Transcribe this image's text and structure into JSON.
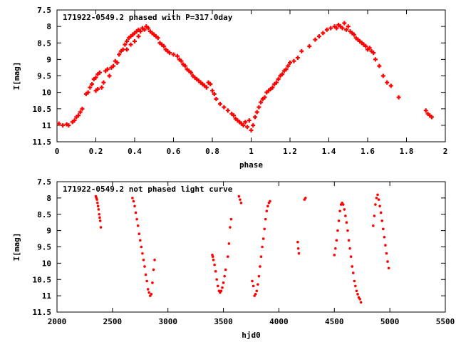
{
  "chart_data": [
    {
      "type": "scatter",
      "title": "171922-0549.2 phased with P=317.0day",
      "xlabel": "phase",
      "ylabel": "I[mag]",
      "xlim": [
        0,
        2
      ],
      "ylim": [
        7.5,
        11.5
      ],
      "y_inverted": true,
      "x_ticks": [
        "0",
        "0.2",
        "0.4",
        "0.6",
        "0.8",
        "1",
        "1.2",
        "1.4",
        "1.6",
        "1.8",
        "2"
      ],
      "y_ticks": [
        "7.5",
        "8",
        "8.5",
        "9",
        "9.5",
        "10",
        "10.5",
        "11",
        "11.5"
      ],
      "grid": false,
      "marker_color": "#ff0000",
      "series": [
        {
          "points": [
            [
              0.01,
              10.95
            ],
            [
              0.03,
              11.0
            ],
            [
              0.05,
              10.97
            ],
            [
              0.06,
              11.0
            ],
            [
              0.08,
              10.9
            ],
            [
              0.09,
              10.85
            ],
            [
              0.1,
              10.75
            ],
            [
              0.11,
              10.7
            ],
            [
              0.12,
              10.6
            ],
            [
              0.13,
              10.5
            ],
            [
              0.15,
              10.05
            ],
            [
              0.16,
              10.0
            ],
            [
              0.17,
              9.85
            ],
            [
              0.18,
              9.75
            ],
            [
              0.19,
              9.6
            ],
            [
              0.2,
              9.55
            ],
            [
              0.21,
              9.45
            ],
            [
              0.22,
              9.4
            ],
            [
              0.2,
              9.95
            ],
            [
              0.21,
              9.9
            ],
            [
              0.23,
              9.85
            ],
            [
              0.24,
              9.7
            ],
            [
              0.25,
              9.35
            ],
            [
              0.26,
              9.3
            ],
            [
              0.27,
              9.5
            ],
            [
              0.28,
              9.25
            ],
            [
              0.29,
              9.2
            ],
            [
              0.3,
              9.05
            ],
            [
              0.31,
              9.1
            ],
            [
              0.32,
              8.85
            ],
            [
              0.33,
              8.75
            ],
            [
              0.34,
              8.7
            ],
            [
              0.35,
              8.55
            ],
            [
              0.36,
              8.45
            ],
            [
              0.37,
              8.35
            ],
            [
              0.38,
              8.3
            ],
            [
              0.39,
              8.25
            ],
            [
              0.4,
              8.2
            ],
            [
              0.41,
              8.15
            ],
            [
              0.42,
              8.1
            ],
            [
              0.43,
              8.15
            ],
            [
              0.44,
              8.05
            ],
            [
              0.45,
              8.1
            ],
            [
              0.46,
              8.0
            ],
            [
              0.47,
              8.05
            ],
            [
              0.48,
              8.15
            ],
            [
              0.49,
              8.2
            ],
            [
              0.5,
              8.25
            ],
            [
              0.51,
              8.3
            ],
            [
              0.52,
              8.35
            ],
            [
              0.36,
              8.7
            ],
            [
              0.38,
              8.55
            ],
            [
              0.4,
              8.45
            ],
            [
              0.42,
              8.3
            ],
            [
              0.53,
              8.5
            ],
            [
              0.54,
              8.55
            ],
            [
              0.55,
              8.6
            ],
            [
              0.56,
              8.7
            ],
            [
              0.57,
              8.75
            ],
            [
              0.58,
              8.8
            ],
            [
              0.6,
              8.85
            ],
            [
              0.62,
              8.9
            ],
            [
              0.63,
              9.0
            ],
            [
              0.64,
              9.05
            ],
            [
              0.65,
              9.15
            ],
            [
              0.66,
              9.2
            ],
            [
              0.67,
              9.3
            ],
            [
              0.68,
              9.35
            ],
            [
              0.69,
              9.4
            ],
            [
              0.7,
              9.5
            ],
            [
              0.71,
              9.55
            ],
            [
              0.72,
              9.6
            ],
            [
              0.73,
              9.65
            ],
            [
              0.74,
              9.7
            ],
            [
              0.75,
              9.75
            ],
            [
              0.76,
              9.8
            ],
            [
              0.77,
              9.85
            ],
            [
              0.78,
              9.7
            ],
            [
              0.79,
              9.75
            ],
            [
              0.8,
              9.95
            ],
            [
              0.81,
              10.05
            ],
            [
              0.82,
              10.2
            ],
            [
              0.84,
              10.35
            ],
            [
              0.86,
              10.45
            ],
            [
              0.88,
              10.55
            ],
            [
              0.9,
              10.65
            ],
            [
              0.91,
              10.7
            ],
            [
              0.92,
              10.8
            ],
            [
              0.93,
              10.85
            ],
            [
              0.94,
              10.9
            ],
            [
              0.95,
              10.95
            ],
            [
              0.96,
              11.0
            ],
            [
              0.97,
              10.9
            ],
            [
              0.98,
              11.05
            ],
            [
              0.99,
              10.85
            ],
            [
              1.0,
              11.15
            ],
            [
              1.01,
              11.0
            ],
            [
              1.02,
              10.75
            ],
            [
              1.03,
              10.6
            ],
            [
              1.04,
              10.45
            ],
            [
              1.05,
              10.3
            ],
            [
              1.06,
              10.2
            ],
            [
              1.07,
              10.15
            ],
            [
              1.08,
              10.0
            ],
            [
              1.09,
              9.95
            ],
            [
              1.1,
              9.9
            ],
            [
              1.11,
              9.85
            ],
            [
              1.12,
              9.75
            ],
            [
              1.13,
              9.7
            ],
            [
              1.14,
              9.6
            ],
            [
              1.15,
              9.5
            ],
            [
              1.16,
              9.45
            ],
            [
              1.17,
              9.35
            ],
            [
              1.18,
              9.3
            ],
            [
              1.19,
              9.2
            ],
            [
              1.2,
              9.1
            ],
            [
              1.22,
              9.05
            ],
            [
              1.24,
              8.95
            ],
            [
              1.26,
              8.75
            ],
            [
              1.3,
              8.6
            ],
            [
              1.33,
              8.4
            ],
            [
              1.35,
              8.3
            ],
            [
              1.37,
              8.2
            ],
            [
              1.39,
              8.1
            ],
            [
              1.41,
              8.05
            ],
            [
              1.43,
              8.0
            ],
            [
              1.44,
              8.05
            ],
            [
              1.45,
              7.95
            ],
            [
              1.46,
              8.0
            ],
            [
              1.47,
              8.05
            ],
            [
              1.48,
              7.9
            ],
            [
              1.49,
              8.1
            ],
            [
              1.5,
              8.0
            ],
            [
              1.51,
              8.15
            ],
            [
              1.52,
              8.2
            ],
            [
              1.53,
              8.25
            ],
            [
              1.54,
              8.35
            ],
            [
              1.55,
              8.4
            ],
            [
              1.56,
              8.45
            ],
            [
              1.57,
              8.5
            ],
            [
              1.58,
              8.55
            ],
            [
              1.59,
              8.6
            ],
            [
              1.6,
              8.7
            ],
            [
              1.61,
              8.65
            ],
            [
              1.62,
              8.75
            ],
            [
              1.63,
              8.8
            ],
            [
              1.64,
              9.0
            ],
            [
              1.66,
              9.2
            ],
            [
              1.68,
              9.5
            ],
            [
              1.7,
              9.7
            ],
            [
              1.72,
              9.8
            ],
            [
              1.76,
              10.15
            ],
            [
              1.9,
              10.55
            ],
            [
              1.91,
              10.65
            ],
            [
              1.92,
              10.7
            ],
            [
              1.93,
              10.75
            ]
          ]
        }
      ]
    },
    {
      "type": "scatter",
      "title": "171922-0549.2 not phased light curve",
      "xlabel": "hjd0",
      "ylabel": "I[mag]",
      "xlim": [
        2000,
        5500
      ],
      "ylim": [
        7.5,
        11.5
      ],
      "y_inverted": true,
      "x_ticks": [
        "2000",
        "2500",
        "3000",
        "3500",
        "4000",
        "4500",
        "5000",
        "5500"
      ],
      "y_ticks": [
        "7.5",
        "8",
        "8.5",
        "9",
        "9.5",
        "10",
        "10.5",
        "11",
        "11.5"
      ],
      "grid": false,
      "marker_color": "#ff0000",
      "series": [
        {
          "points": [
            [
              2350,
              7.95
            ],
            [
              2355,
              8.0
            ],
            [
              2360,
              8.05
            ],
            [
              2365,
              8.15
            ],
            [
              2370,
              8.25
            ],
            [
              2375,
              8.35
            ],
            [
              2380,
              8.5
            ],
            [
              2385,
              8.6
            ],
            [
              2390,
              8.7
            ],
            [
              2395,
              8.9
            ],
            [
              2680,
              8.0
            ],
            [
              2690,
              8.1
            ],
            [
              2700,
              8.25
            ],
            [
              2710,
              8.45
            ],
            [
              2720,
              8.65
            ],
            [
              2730,
              8.85
            ],
            [
              2740,
              9.1
            ],
            [
              2750,
              9.3
            ],
            [
              2760,
              9.5
            ],
            [
              2770,
              9.7
            ],
            [
              2780,
              9.9
            ],
            [
              2790,
              10.1
            ],
            [
              2800,
              10.35
            ],
            [
              2810,
              10.55
            ],
            [
              2820,
              10.8
            ],
            [
              2830,
              10.9
            ],
            [
              2840,
              11.0
            ],
            [
              2850,
              10.95
            ],
            [
              2860,
              10.6
            ],
            [
              2870,
              10.2
            ],
            [
              2880,
              9.9
            ],
            [
              3400,
              9.75
            ],
            [
              3405,
              9.8
            ],
            [
              3410,
              9.9
            ],
            [
              3420,
              10.05
            ],
            [
              3430,
              10.25
            ],
            [
              3440,
              10.5
            ],
            [
              3450,
              10.7
            ],
            [
              3460,
              10.85
            ],
            [
              3470,
              10.9
            ],
            [
              3480,
              10.85
            ],
            [
              3490,
              10.75
            ],
            [
              3500,
              10.6
            ],
            [
              3510,
              10.4
            ],
            [
              3520,
              10.2
            ],
            [
              3540,
              9.8
            ],
            [
              3550,
              9.4
            ],
            [
              3560,
              8.9
            ],
            [
              3570,
              8.65
            ],
            [
              3640,
              7.95
            ],
            [
              3650,
              8.05
            ],
            [
              3660,
              8.15
            ],
            [
              3760,
              10.55
            ],
            [
              3770,
              10.7
            ],
            [
              3780,
              11.0
            ],
            [
              3790,
              10.95
            ],
            [
              3800,
              10.85
            ],
            [
              3810,
              10.65
            ],
            [
              3820,
              10.4
            ],
            [
              3830,
              10.1
            ],
            [
              3840,
              9.8
            ],
            [
              3850,
              9.5
            ],
            [
              3860,
              9.25
            ],
            [
              3870,
              8.95
            ],
            [
              3880,
              8.65
            ],
            [
              3890,
              8.4
            ],
            [
              3900,
              8.25
            ],
            [
              3910,
              8.15
            ],
            [
              3920,
              8.1
            ],
            [
              4170,
              9.35
            ],
            [
              4175,
              9.55
            ],
            [
              4180,
              9.7
            ],
            [
              4230,
              8.05
            ],
            [
              4240,
              8.0
            ],
            [
              4500,
              9.75
            ],
            [
              4510,
              9.55
            ],
            [
              4520,
              9.3
            ],
            [
              4530,
              9.0
            ],
            [
              4540,
              8.7
            ],
            [
              4550,
              8.4
            ],
            [
              4560,
              8.2
            ],
            [
              4570,
              8.15
            ],
            [
              4580,
              8.2
            ],
            [
              4590,
              8.35
            ],
            [
              4600,
              8.55
            ],
            [
              4610,
              8.75
            ],
            [
              4620,
              9.0
            ],
            [
              4630,
              9.3
            ],
            [
              4640,
              9.55
            ],
            [
              4650,
              9.8
            ],
            [
              4660,
              10.1
            ],
            [
              4670,
              10.3
            ],
            [
              4680,
              10.55
            ],
            [
              4690,
              10.7
            ],
            [
              4700,
              10.85
            ],
            [
              4710,
              10.95
            ],
            [
              4720,
              11.05
            ],
            [
              4730,
              11.1
            ],
            [
              4740,
              11.2
            ],
            [
              4850,
              8.85
            ],
            [
              4860,
              8.55
            ],
            [
              4870,
              8.2
            ],
            [
              4880,
              8.0
            ],
            [
              4890,
              7.9
            ],
            [
              4900,
              8.05
            ],
            [
              4910,
              8.25
            ],
            [
              4920,
              8.45
            ],
            [
              4930,
              8.7
            ],
            [
              4940,
              8.95
            ],
            [
              4950,
              9.2
            ],
            [
              4960,
              9.45
            ],
            [
              4970,
              9.7
            ],
            [
              4980,
              9.95
            ],
            [
              4990,
              10.15
            ]
          ]
        }
      ]
    }
  ]
}
